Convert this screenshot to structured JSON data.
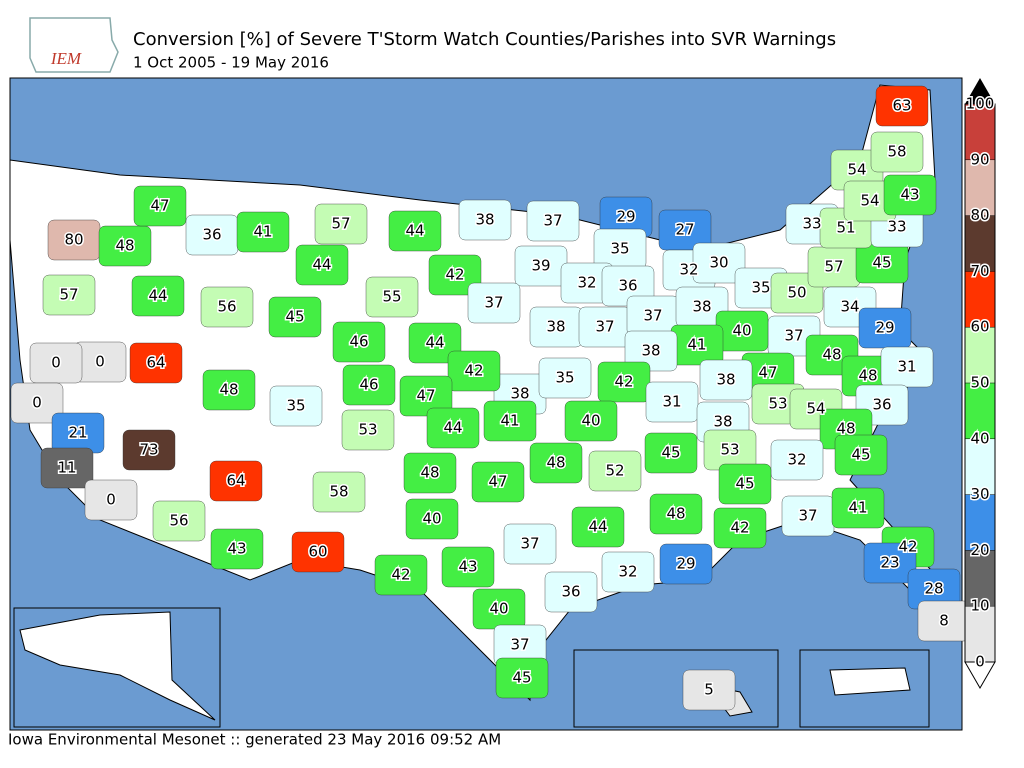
{
  "logo": "IEM",
  "title": "Conversion [%] of Severe T'Storm Watch Counties/Parishes into SVR Warnings",
  "subtitle": "1 Oct 2005 - 19 May 2016",
  "footer": "Iowa Environmental Mesonet :: generated 23 May 2016 09:52 AM",
  "colorbar": {
    "ticks": [
      0,
      10,
      20,
      30,
      40,
      50,
      60,
      70,
      80,
      90,
      100
    ],
    "colors": [
      "#e6e6e6",
      "#666666",
      "#3d8fe8",
      "#e0ffff",
      "#44ee44",
      "#c4fcb4",
      "#ff3300",
      "#5c3a2e",
      "#dfb8ad",
      "#c8403a"
    ],
    "over_color": "#000000"
  },
  "regions": [
    80,
    48,
    47,
    36,
    41,
    57,
    44,
    38,
    37,
    29,
    27,
    35,
    39,
    32,
    36,
    32,
    30,
    44,
    42,
    55,
    57,
    44,
    56,
    45,
    46,
    44,
    37,
    38,
    37,
    37,
    38,
    35,
    50,
    57,
    45,
    33,
    51,
    33,
    54,
    58,
    54,
    43,
    63,
    34,
    29,
    37,
    40,
    41,
    38,
    38,
    35,
    42,
    42,
    47,
    46,
    48,
    0,
    64,
    0,
    0,
    21,
    11,
    73,
    0,
    64,
    35,
    53,
    44,
    41,
    40,
    31,
    38,
    47,
    38,
    48,
    48,
    31,
    53,
    54,
    36,
    48,
    45,
    32,
    53,
    45,
    52,
    48,
    47,
    48,
    58,
    40,
    37,
    44,
    48,
    45,
    42,
    37,
    41,
    42,
    23,
    28,
    8,
    29,
    32,
    36,
    40,
    43,
    42,
    60,
    56,
    43,
    37,
    45,
    5
  ]
}
